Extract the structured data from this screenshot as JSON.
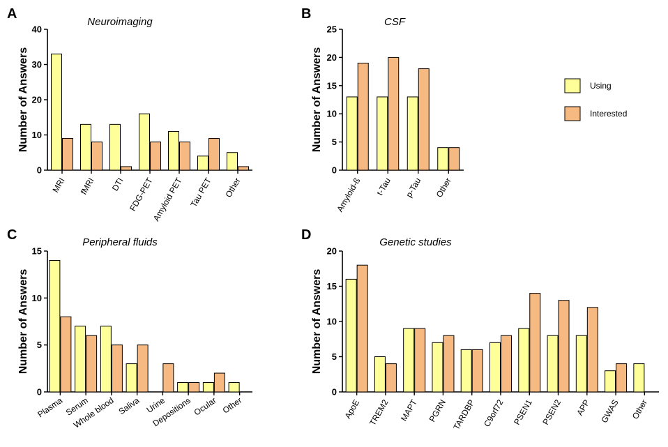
{
  "colors": {
    "using": "#ffff99",
    "interested": "#f7b982",
    "stroke": "#000000"
  },
  "legend": {
    "items": [
      {
        "label": "Using",
        "color": "#ffff99"
      },
      {
        "label": "Interested",
        "color": "#f7b982"
      }
    ]
  },
  "chart_data": [
    {
      "panel": "A",
      "type": "bar",
      "title": "Neuroimaging",
      "ylabel": "Number of Answers",
      "ylim": [
        0,
        40
      ],
      "yticks": [
        0,
        10,
        20,
        30,
        40
      ],
      "categories": [
        "MRI",
        "fMRI",
        "DTI",
        "FDG-PET",
        "Amyloid PET",
        "Tau PET",
        "Other"
      ],
      "series": [
        {
          "name": "Using",
          "values": [
            33,
            13,
            13,
            16,
            11,
            4,
            5
          ]
        },
        {
          "name": "Interested",
          "values": [
            9,
            8,
            1,
            8,
            8,
            9,
            1
          ]
        }
      ]
    },
    {
      "panel": "B",
      "type": "bar",
      "title": "CSF",
      "ylabel": "Number of Answers",
      "ylim": [
        0,
        25
      ],
      "yticks": [
        0,
        5,
        10,
        15,
        20,
        25
      ],
      "categories": [
        "Amyloid-ß",
        "t-Tau",
        "p-Tau",
        "Other"
      ],
      "series": [
        {
          "name": "Using",
          "values": [
            13,
            13,
            13,
            4
          ]
        },
        {
          "name": "Interested",
          "values": [
            19,
            20,
            18,
            4
          ]
        }
      ]
    },
    {
      "panel": "C",
      "type": "bar",
      "title": "Peripheral fluids",
      "ylabel": "Number of Answers",
      "ylim": [
        0,
        15
      ],
      "yticks": [
        0,
        5,
        10,
        15
      ],
      "categories": [
        "Plasma",
        "Serum",
        "Whole blood",
        "Saliva",
        "Urine",
        "Depositions",
        "Ocular",
        "Other"
      ],
      "series": [
        {
          "name": "Using",
          "values": [
            14,
            7,
            7,
            3,
            0,
            1,
            1,
            1
          ]
        },
        {
          "name": "Interested",
          "values": [
            8,
            6,
            5,
            5,
            3,
            1,
            2,
            0
          ]
        }
      ]
    },
    {
      "panel": "D",
      "type": "bar",
      "title": "Genetic studies",
      "ylabel": "Number of Answers",
      "ylim": [
        0,
        20
      ],
      "yticks": [
        0,
        5,
        10,
        15,
        20
      ],
      "categories": [
        "ApoE",
        "TREM2",
        "MAPT",
        "PGRN",
        "TARDBP",
        "C9orf72",
        "PSEN1",
        "PSEN2",
        "APP",
        "GWAS",
        "Other"
      ],
      "series": [
        {
          "name": "Using",
          "values": [
            16,
            5,
            9,
            7,
            6,
            7,
            9,
            8,
            8,
            3,
            4
          ]
        },
        {
          "name": "Interested",
          "values": [
            18,
            4,
            9,
            8,
            6,
            8,
            14,
            13,
            12,
            4,
            0
          ]
        }
      ]
    }
  ]
}
